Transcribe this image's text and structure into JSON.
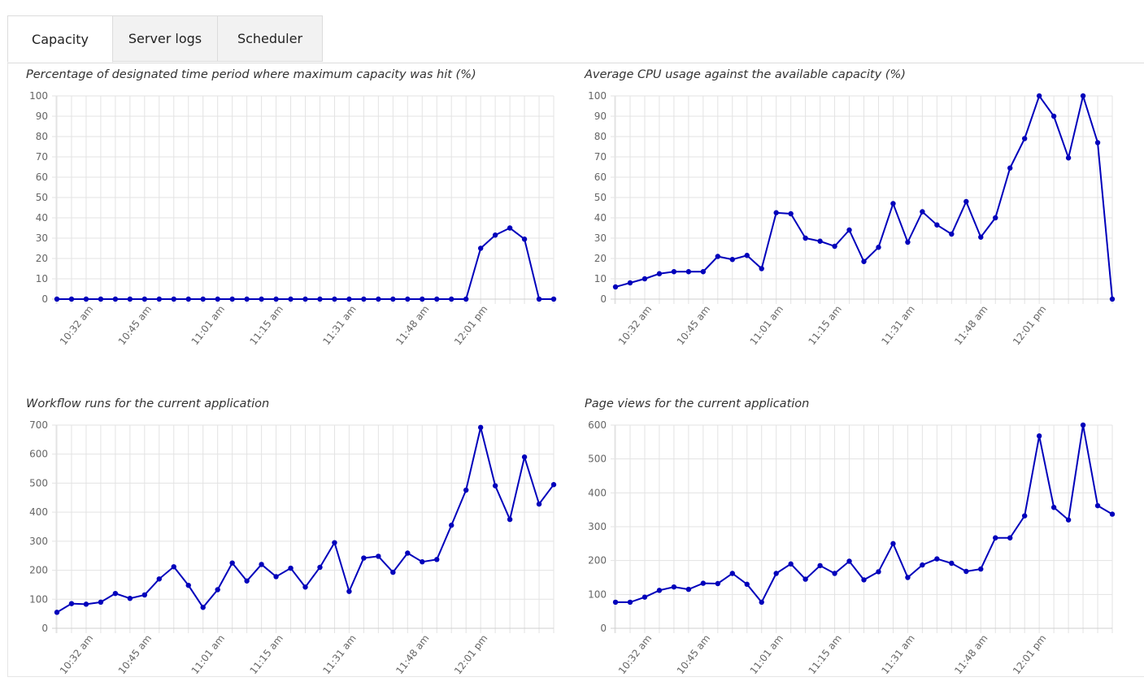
{
  "tabs": [
    {
      "label": "Capacity",
      "active": true
    },
    {
      "label": "Server logs",
      "active": false
    },
    {
      "label": "Scheduler",
      "active": false
    }
  ],
  "colors": {
    "series": "#0000bb",
    "grid": "#e3e3e3"
  },
  "chart_data": [
    {
      "type": "line",
      "title": "Percentage of designated time period where maximum capacity was hit (%)",
      "ylim": [
        0,
        100
      ],
      "yticks": [
        0,
        10,
        20,
        30,
        40,
        50,
        60,
        70,
        80,
        90,
        100
      ],
      "x_tick_labels": [
        {
          "index": 2.5,
          "label": "10:32 am"
        },
        {
          "index": 6.5,
          "label": "10:45 am"
        },
        {
          "index": 11.5,
          "label": "11:01 am"
        },
        {
          "index": 15.5,
          "label": "11:15 am"
        },
        {
          "index": 20.5,
          "label": "11:31 am"
        },
        {
          "index": 25.5,
          "label": "11:48 am"
        },
        {
          "index": 29.5,
          "label": "12:01 pm"
        }
      ],
      "grid": true,
      "values": [
        0,
        0,
        0,
        0,
        0,
        0,
        0,
        0,
        0,
        0,
        0,
        0,
        0,
        0,
        0,
        0,
        0,
        0,
        0,
        0,
        0,
        0,
        0,
        0,
        0,
        0,
        0,
        0,
        0,
        25,
        31.5,
        35,
        29.5,
        0,
        0
      ]
    },
    {
      "type": "line",
      "title": "Average CPU usage against the available capacity (%)",
      "ylim": [
        0,
        100
      ],
      "yticks": [
        0,
        10,
        20,
        30,
        40,
        50,
        60,
        70,
        80,
        90,
        100
      ],
      "x_tick_labels": [
        {
          "index": 2.5,
          "label": "10:32 am"
        },
        {
          "index": 6.5,
          "label": "10:45 am"
        },
        {
          "index": 11.5,
          "label": "11:01 am"
        },
        {
          "index": 15.5,
          "label": "11:15 am"
        },
        {
          "index": 20.5,
          "label": "11:31 am"
        },
        {
          "index": 25.5,
          "label": "11:48 am"
        },
        {
          "index": 29.5,
          "label": "12:01 pm"
        }
      ],
      "grid": true,
      "values": [
        6,
        8,
        10,
        12.5,
        13.5,
        13.5,
        13.5,
        21,
        19.5,
        21.5,
        15,
        42.5,
        42,
        30,
        28.5,
        26,
        34,
        18.5,
        25.5,
        47,
        28,
        43,
        36.5,
        32,
        48,
        30.5,
        40,
        64.5,
        79,
        100,
        90,
        69.5,
        100,
        77,
        0
      ]
    },
    {
      "type": "line",
      "title": "Workflow runs for the current application",
      "ylim": [
        0,
        700
      ],
      "yticks": [
        0,
        100,
        200,
        300,
        400,
        500,
        600,
        700
      ],
      "x_tick_labels": [
        {
          "index": 2.5,
          "label": "10:32 am"
        },
        {
          "index": 6.5,
          "label": "10:45 am"
        },
        {
          "index": 11.5,
          "label": "11:01 am"
        },
        {
          "index": 15.5,
          "label": "11:15 am"
        },
        {
          "index": 20.5,
          "label": "11:31 am"
        },
        {
          "index": 25.5,
          "label": "11:48 am"
        },
        {
          "index": 29.5,
          "label": "12:01 pm"
        }
      ],
      "grid": true,
      "values": [
        55,
        85,
        83,
        90,
        120,
        103,
        115,
        170,
        212,
        148,
        72,
        133,
        225,
        163,
        220,
        178,
        207,
        142,
        210,
        295,
        127,
        242,
        248,
        193,
        259,
        229,
        237,
        355,
        476,
        692,
        491,
        375,
        590,
        428,
        495
      ]
    },
    {
      "type": "line",
      "title": "Page views for the current application",
      "ylim": [
        0,
        600
      ],
      "yticks": [
        0,
        100,
        200,
        300,
        400,
        500,
        600
      ],
      "x_tick_labels": [
        {
          "index": 2.5,
          "label": "10:32 am"
        },
        {
          "index": 6.5,
          "label": "10:45 am"
        },
        {
          "index": 11.5,
          "label": "11:01 am"
        },
        {
          "index": 15.5,
          "label": "11:15 am"
        },
        {
          "index": 20.5,
          "label": "11:31 am"
        },
        {
          "index": 25.5,
          "label": "11:48 am"
        },
        {
          "index": 29.5,
          "label": "12:01 pm"
        }
      ],
      "grid": true,
      "values": [
        77,
        77,
        92,
        112,
        122,
        115,
        133,
        132,
        162,
        130,
        77,
        162,
        190,
        145,
        185,
        162,
        198,
        143,
        167,
        250,
        150,
        187,
        205,
        192,
        168,
        175,
        267,
        267,
        332,
        568,
        357,
        320,
        600,
        362,
        337
      ]
    }
  ]
}
